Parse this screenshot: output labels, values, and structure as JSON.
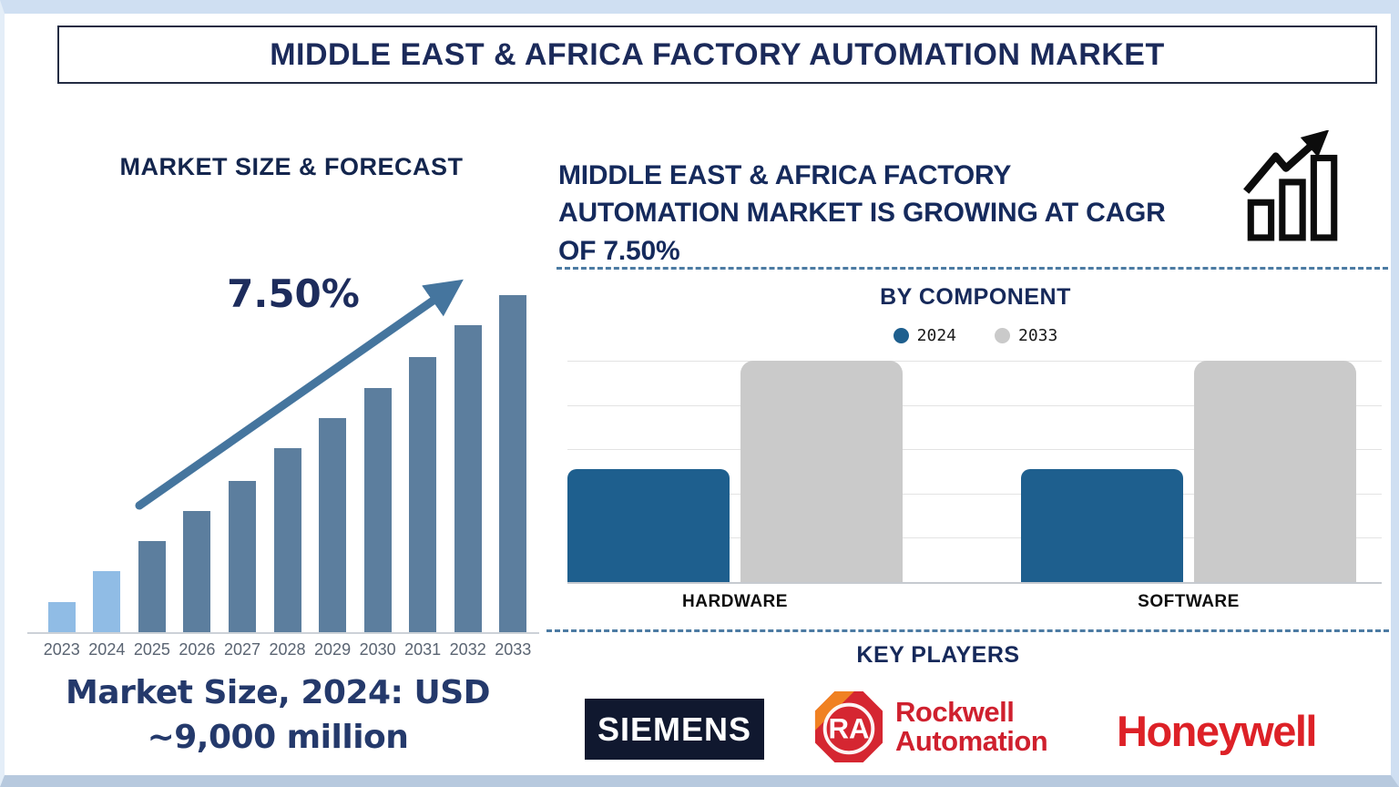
{
  "header": {
    "title": "MIDDLE EAST & AFRICA FACTORY AUTOMATION MARKET"
  },
  "left_panel": {
    "heading": "MARKET SIZE & FORECAST",
    "growth_label": "7.50%",
    "caption_line1": "Market Size, 2024: USD",
    "caption_line2": "~9,000 million"
  },
  "right_panel": {
    "headline": "MIDDLE EAST & AFRICA FACTORY AUTOMATION MARKET IS GROWING AT CAGR OF 7.50%",
    "by_component": {
      "title": "BY COMPONENT"
    },
    "key_players": {
      "title": "KEY PLAYERS",
      "players": [
        {
          "name": "Siemens",
          "logo_text": "SIEMENS"
        },
        {
          "name": "Rockwell Automation",
          "badge_text": "RA",
          "logo_line1": "Rockwell",
          "logo_line2": "Automation"
        },
        {
          "name": "Honeywell",
          "logo_text": "Honeywell"
        }
      ]
    }
  },
  "colors": {
    "navy_text": "#1b2a5a",
    "forecast_bar_light": "#90bce5",
    "forecast_bar_dark": "#5c7e9e",
    "trend_arrow": "#45759e",
    "bar_2024_blue": "#1e5f8e",
    "bar_2033_gray": "#cacaca",
    "dashed_line": "#4c7ba3",
    "siemens_bg": "#10182f",
    "logo_red": "#d0202c"
  },
  "chart_data": [
    {
      "type": "bar",
      "title": "MARKET SIZE & FORECAST",
      "categories": [
        "2023",
        "2024",
        "2025",
        "2026",
        "2027",
        "2028",
        "2029",
        "2030",
        "2031",
        "2032",
        "2033"
      ],
      "values_pct_of_max": [
        9,
        18,
        27,
        36,
        45,
        54.5,
        63.5,
        72.5,
        81.5,
        91,
        100
      ],
      "bar_colors": [
        "#90bce5",
        "#90bce5",
        "#5c7e9e",
        "#5c7e9e",
        "#5c7e9e",
        "#5c7e9e",
        "#5c7e9e",
        "#5c7e9e",
        "#5c7e9e",
        "#5c7e9e",
        "#5c7e9e"
      ],
      "annotation": "7.50%",
      "note": "Market Size, 2024: USD ~9,000 million",
      "xlabel": "",
      "ylabel": "",
      "gridlines": false
    },
    {
      "type": "bar",
      "title": "BY COMPONENT",
      "categories": [
        "HARDWARE",
        "SOFTWARE"
      ],
      "series": [
        {
          "name": "2024",
          "color": "#1e5f8e",
          "values_pct_of_max": [
            51,
            51
          ]
        },
        {
          "name": "2033",
          "color": "#cacaca",
          "values_pct_of_max": [
            100,
            100
          ]
        }
      ],
      "legend_position": "top",
      "gridlines": true,
      "gridline_count": 6,
      "ylim_pct": [
        0,
        100
      ]
    }
  ]
}
